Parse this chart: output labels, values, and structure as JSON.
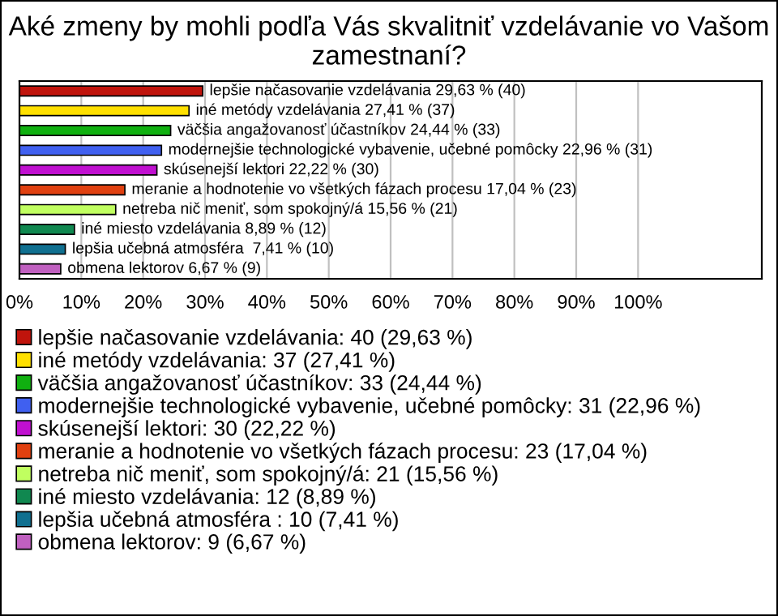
{
  "chart_data": {
    "type": "bar",
    "orientation": "horizontal",
    "title": "Aké zmeny by mohli podľa Vás skvalitniť vzdelávanie vo Vašom zamestnaní?",
    "categories": [
      null,
      null,
      null,
      null,
      null,
      null,
      null,
      null,
      null,
      null
    ],
    "series": [
      {
        "name": "lepšie načasovanie vzdelávania: 40 (29,63 %)",
        "color": "#c0140c",
        "values": [
          29.63,
          null,
          null,
          null,
          null,
          null,
          null,
          null,
          null,
          null
        ],
        "value_labels": [
          "lepšie načasovanie vzdelávania 29,63 % (40)",
          null,
          null,
          null,
          null,
          null,
          null,
          null,
          null,
          null
        ]
      },
      {
        "name": "iné metódy vzdelávania: 37 (27,41 %)",
        "color": "#ffe000",
        "values": [
          null,
          27.41,
          null,
          null,
          null,
          null,
          null,
          null,
          null,
          null
        ],
        "value_labels": [
          null,
          "iné metódy vzdelávania 27,41 % (37)",
          null,
          null,
          null,
          null,
          null,
          null,
          null,
          null
        ]
      },
      {
        "name": "väčšia angažovanosť účastníkov: 33 (24,44 %)",
        "color": "#10b010",
        "values": [
          null,
          null,
          24.44,
          null,
          null,
          null,
          null,
          null,
          null,
          null
        ],
        "value_labels": [
          null,
          null,
          "väčšia angažovanosť účastníkov 24,44 % (33)",
          null,
          null,
          null,
          null,
          null,
          null,
          null
        ]
      },
      {
        "name": "modernejšie technologické vybavenie, učebné pomôcky: 31 (22,96 %)",
        "color": "#4060f0",
        "values": [
          null,
          null,
          null,
          22.96,
          null,
          null,
          null,
          null,
          null,
          null
        ],
        "value_labels": [
          null,
          null,
          null,
          "modernejšie technologické vybavenie, učebné pomôcky 22,96 % (31)",
          null,
          null,
          null,
          null,
          null,
          null
        ]
      },
      {
        "name": "skúsenejší lektori: 30 (22,22 %)",
        "color": "#c010d0",
        "values": [
          null,
          null,
          null,
          null,
          22.22,
          null,
          null,
          null,
          null,
          null
        ],
        "value_labels": [
          null,
          null,
          null,
          null,
          "skúsenejší lektori 22,22 % (30)",
          null,
          null,
          null,
          null,
          null
        ]
      },
      {
        "name": "meranie a hodnotenie vo všetkých fázach procesu: 23 (17,04 %)",
        "color": "#e04010",
        "values": [
          null,
          null,
          null,
          null,
          null,
          17.04,
          null,
          null,
          null,
          null
        ],
        "value_labels": [
          null,
          null,
          null,
          null,
          null,
          "meranie a hodnotenie vo všetkých fázach procesu 17,04 % (23)",
          null,
          null,
          null,
          null
        ]
      },
      {
        "name": "netreba nič meniť, som spokojný/á: 21 (15,56 %)",
        "color": "#c0ff60",
        "values": [
          null,
          null,
          null,
          null,
          null,
          null,
          15.56,
          null,
          null,
          null
        ],
        "value_labels": [
          null,
          null,
          null,
          null,
          null,
          null,
          "netreba nič meniť, som spokojný/á 15,56 % (21)",
          null,
          null,
          null
        ]
      },
      {
        "name": "iné miesto vzdelávania: 12 (8,89 %)",
        "color": "#108850",
        "values": [
          null,
          null,
          null,
          null,
          null,
          null,
          null,
          8.89,
          null,
          null
        ],
        "value_labels": [
          null,
          null,
          null,
          null,
          null,
          null,
          null,
          "iné miesto vzdelávania 8,89 % (12)",
          null,
          null
        ]
      },
      {
        "name": "lepšia učebná atmosféra : 10 (7,41 %)",
        "color": "#107090",
        "values": [
          null,
          null,
          null,
          null,
          null,
          null,
          null,
          null,
          7.41,
          null
        ],
        "value_labels": [
          null,
          null,
          null,
          null,
          null,
          null,
          null,
          null,
          "lepšia učebná atmosféra  7,41 % (10)",
          null
        ]
      },
      {
        "name": "obmena lektorov: 9 (6,67 %)",
        "color": "#c060c0",
        "values": [
          null,
          null,
          null,
          null,
          null,
          null,
          null,
          null,
          null,
          6.67
        ],
        "value_labels": [
          null,
          null,
          null,
          null,
          null,
          null,
          null,
          null,
          null,
          "obmena lektorov 6,67 % (9)"
        ]
      }
    ],
    "xlim": [
      0,
      120
    ],
    "xticks": [
      {
        "value": 0,
        "label": "0%"
      },
      {
        "value": 10,
        "label": "10%"
      },
      {
        "value": 20,
        "label": "20%"
      },
      {
        "value": 30,
        "label": "30%"
      },
      {
        "value": 40,
        "label": "40%"
      },
      {
        "value": 50,
        "label": "50%"
      },
      {
        "value": 60,
        "label": "60%"
      },
      {
        "value": 70,
        "label": "70%"
      },
      {
        "value": 80,
        "label": "80%"
      },
      {
        "value": 90,
        "label": "90%"
      },
      {
        "value": 100,
        "label": "100%"
      }
    ],
    "grid": "x",
    "legend": "bottom"
  }
}
